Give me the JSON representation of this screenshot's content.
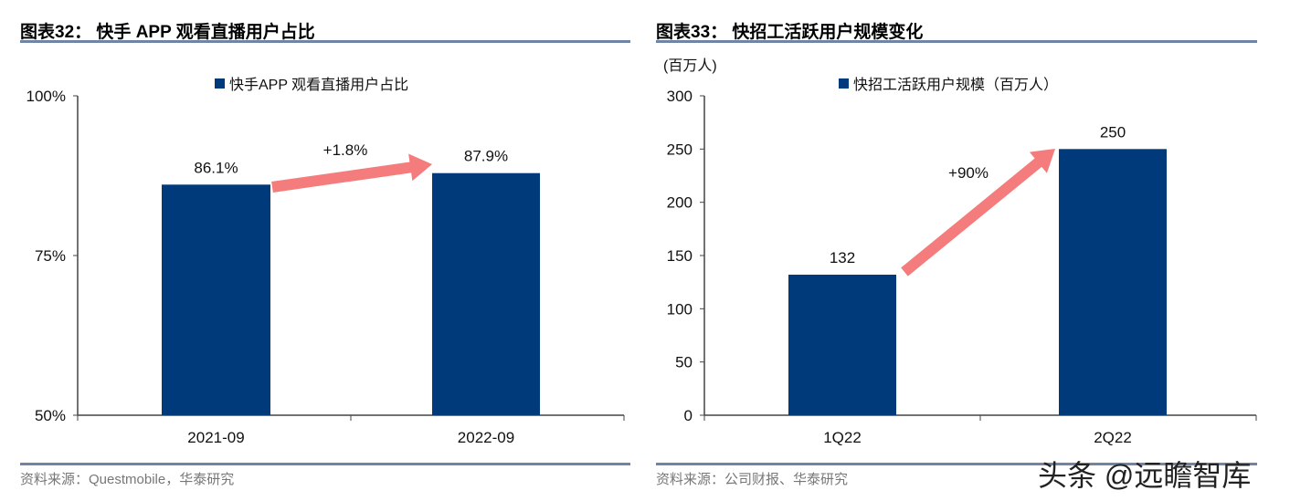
{
  "watermark": "头条 @远瞻智库",
  "chart_data": [
    {
      "type": "bar",
      "title": "图表32： 快手 APP 观看直播用户占比",
      "categories": [
        "2021-09",
        "2022-09"
      ],
      "series": [
        {
          "name": "快手APP 观看直播用户占比",
          "values": [
            86.1,
            87.9
          ]
        }
      ],
      "value_labels": [
        "86.1%",
        "87.9%"
      ],
      "ylim": [
        50,
        100
      ],
      "yticks": [
        "50%",
        "75%",
        "100%"
      ],
      "ytick_values": [
        50,
        75,
        100
      ],
      "annotation": "+1.8%",
      "source": "资料来源：Questmobile，华泰研究",
      "ylabel": "",
      "bar_color": "#003A7A",
      "arrow_color": "#F47C7C",
      "legend": "top"
    },
    {
      "type": "bar",
      "title": "图表33： 快招工活跃用户规模变化",
      "categories": [
        "1Q22",
        "2Q22"
      ],
      "series": [
        {
          "name": "快招工活跃用户规模（百万人）",
          "values": [
            132,
            250
          ]
        }
      ],
      "value_labels": [
        "132",
        "250"
      ],
      "ylim": [
        0,
        300
      ],
      "yticks": [
        "0",
        "50",
        "100",
        "150",
        "200",
        "250",
        "300"
      ],
      "ytick_values": [
        0,
        50,
        100,
        150,
        200,
        250,
        300
      ],
      "annotation": "+90%",
      "source": "资料来源：公司财报、华泰研究",
      "ylabel": "(百万人)",
      "bar_color": "#003A7A",
      "arrow_color": "#F47C7C",
      "legend": "top"
    }
  ]
}
